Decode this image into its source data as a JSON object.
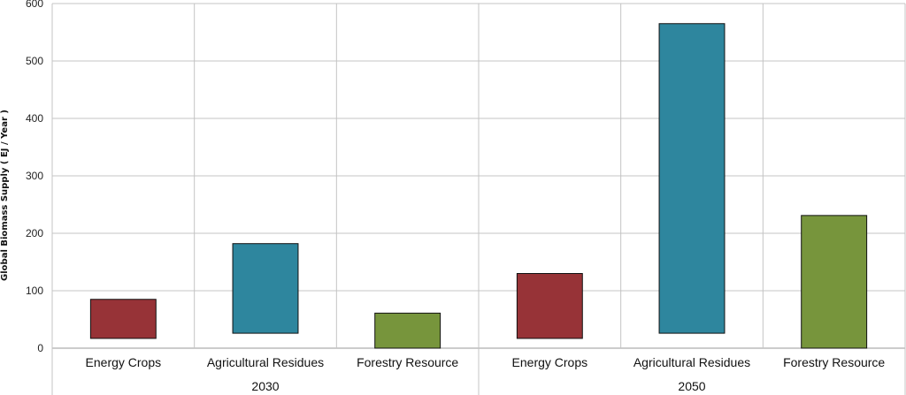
{
  "chart_data": {
    "type": "bar",
    "ylabel": "Global Biomass Supply ( EJ / Year )",
    "ylim": [
      0,
      600
    ],
    "yticks": [
      0,
      100,
      200,
      300,
      400,
      500,
      600
    ],
    "grid": true,
    "groups": [
      {
        "label": "2030",
        "bars": [
          {
            "category": "Energy Crops",
            "low": 17,
            "high": 85,
            "color": "#973337"
          },
          {
            "category": "Agricultural Residues",
            "low": 26,
            "high": 182,
            "color": "#2e869e"
          },
          {
            "category": "Forestry Resource",
            "low": 0,
            "high": 61,
            "color": "#77953c"
          }
        ]
      },
      {
        "label": "2050",
        "bars": [
          {
            "category": "Energy Crops",
            "low": 17,
            "high": 130,
            "color": "#973337"
          },
          {
            "category": "Agricultural Residues",
            "low": 26,
            "high": 565,
            "color": "#2e869e"
          },
          {
            "category": "Forestry Resource",
            "low": 0,
            "high": 231,
            "color": "#77953c"
          }
        ]
      }
    ]
  }
}
